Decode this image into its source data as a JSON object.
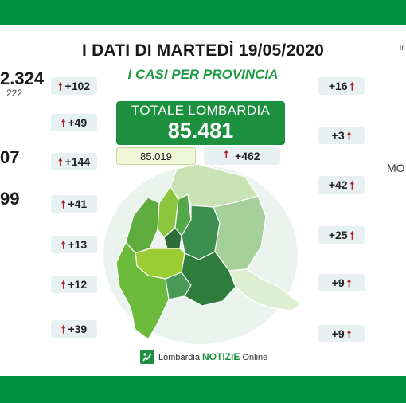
{
  "header": {
    "title": "I DATI DI MARTEDÌ 19/05/2020",
    "subtitle": "I CASI PER PROVINCIA"
  },
  "total": {
    "label": "TOTALE LOMBARDIA",
    "value": "85.481",
    "previous": "85.019",
    "delta": "+462"
  },
  "arrow_symbol": "🠕",
  "left_increments": [
    "+102",
    "+49",
    "+144",
    "+41",
    "+13",
    "+12",
    "+39"
  ],
  "right_increments": [
    "+16",
    "+3",
    "+42",
    "+25",
    "+9",
    "+9"
  ],
  "cut_off_text": {
    "left_1": "2.324",
    "left_2": "222",
    "left_3": "07",
    "left_4": "99",
    "right_1": "ir",
    "right_2": "MO"
  },
  "footer_logo": {
    "brand": "Lombardia",
    "name": "NOTIZIE",
    "suffix": "Online"
  },
  "colors": {
    "band": "#00923f",
    "total_box": "#1d9040",
    "arrow": "#b3222a",
    "pill": "#e8f1f2",
    "subtitle": "#1e9b45"
  }
}
